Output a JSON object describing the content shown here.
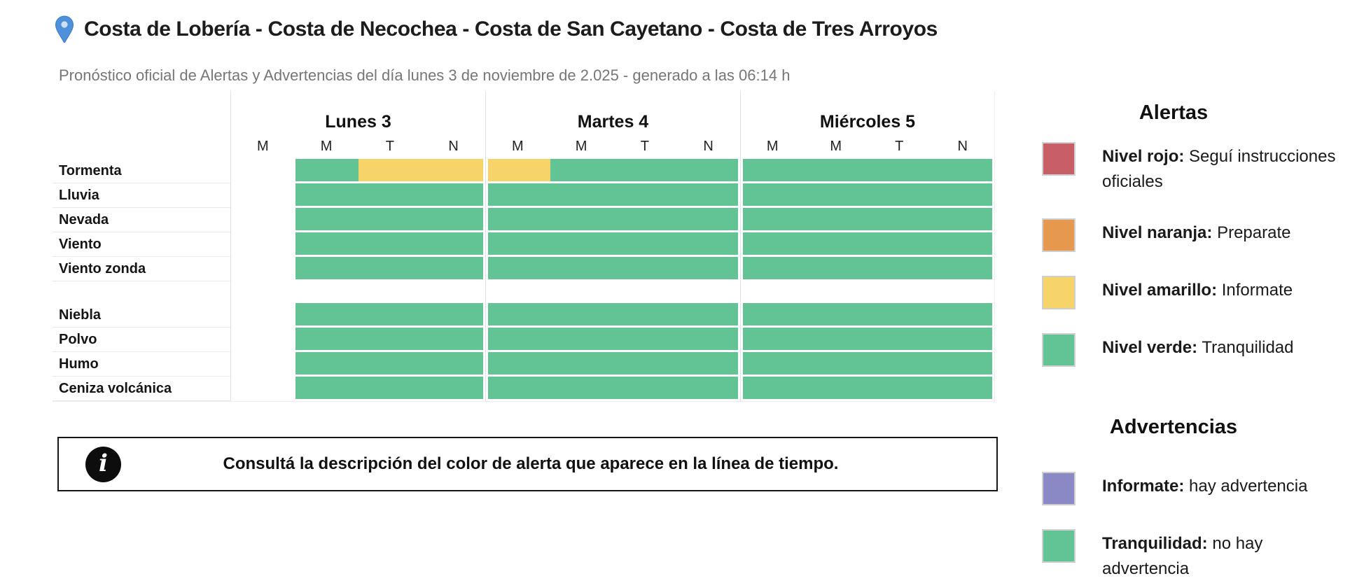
{
  "header": {
    "title": "Costa de Lobería - Costa de Necochea - Costa de San Cayetano - Costa de Tres Arroyos",
    "subtitle": "Pronóstico oficial de Alertas y Advertencias del día lunes 3 de noviembre de 2.025 - generado a las 06:14 h"
  },
  "colors": {
    "green": "#62c394",
    "yellow": "#f6d46a",
    "red": "#c85f66",
    "orange": "#e6994e",
    "purple": "#8b89c5",
    "pin_blue": "#4e90d9",
    "hairline": "#e3e3e3"
  },
  "chart_data": {
    "type": "heatmap",
    "title": "",
    "x_axis": "time periods per day (M madrugada, M mañana, T tarde, N noche)",
    "days": [
      {
        "label": "Lunes 3",
        "slots": [
          "M",
          "M",
          "T",
          "N"
        ]
      },
      {
        "label": "Martes 4",
        "slots": [
          "M",
          "M",
          "T",
          "N"
        ]
      },
      {
        "label": "Miércoles 5",
        "slots": [
          "M",
          "M",
          "T",
          "N"
        ]
      }
    ],
    "cell_legend": {
      "g": "nivel verde / tranquilidad",
      "y": "nivel amarillo / informate",
      "null": "sin dato"
    },
    "groups": [
      {
        "name": "alertas",
        "rows": [
          {
            "label": "Tormenta",
            "cells": [
              [
                null,
                "g",
                "y",
                "y"
              ],
              [
                "y",
                "g",
                "g",
                "g"
              ],
              [
                "g",
                "g",
                "g",
                "g"
              ]
            ]
          },
          {
            "label": "Lluvia",
            "cells": [
              [
                null,
                "g",
                "g",
                "g"
              ],
              [
                "g",
                "g",
                "g",
                "g"
              ],
              [
                "g",
                "g",
                "g",
                "g"
              ]
            ]
          },
          {
            "label": "Nevada",
            "cells": [
              [
                null,
                "g",
                "g",
                "g"
              ],
              [
                "g",
                "g",
                "g",
                "g"
              ],
              [
                "g",
                "g",
                "g",
                "g"
              ]
            ]
          },
          {
            "label": "Viento",
            "cells": [
              [
                null,
                "g",
                "g",
                "g"
              ],
              [
                "g",
                "g",
                "g",
                "g"
              ],
              [
                "g",
                "g",
                "g",
                "g"
              ]
            ]
          },
          {
            "label": "Viento zonda",
            "cells": [
              [
                null,
                "g",
                "g",
                "g"
              ],
              [
                "g",
                "g",
                "g",
                "g"
              ],
              [
                "g",
                "g",
                "g",
                "g"
              ]
            ]
          }
        ]
      },
      {
        "name": "advertencias",
        "rows": [
          {
            "label": "Niebla",
            "cells": [
              [
                null,
                "g",
                "g",
                "g"
              ],
              [
                "g",
                "g",
                "g",
                "g"
              ],
              [
                "g",
                "g",
                "g",
                "g"
              ]
            ]
          },
          {
            "label": "Polvo",
            "cells": [
              [
                null,
                "g",
                "g",
                "g"
              ],
              [
                "g",
                "g",
                "g",
                "g"
              ],
              [
                "g",
                "g",
                "g",
                "g"
              ]
            ]
          },
          {
            "label": "Humo",
            "cells": [
              [
                null,
                "g",
                "g",
                "g"
              ],
              [
                "g",
                "g",
                "g",
                "g"
              ],
              [
                "g",
                "g",
                "g",
                "g"
              ]
            ]
          },
          {
            "label": "Ceniza volcánica",
            "cells": [
              [
                null,
                "g",
                "g",
                "g"
              ],
              [
                "g",
                "g",
                "g",
                "g"
              ],
              [
                "g",
                "g",
                "g",
                "g"
              ]
            ]
          }
        ]
      }
    ]
  },
  "legend": {
    "alertas_title": "Alertas",
    "alertas": [
      {
        "color": "#c85f66",
        "term": "Nivel rojo:",
        "desc": "Seguí instrucciones oficiales"
      },
      {
        "color": "#e6994e",
        "term": "Nivel naranja:",
        "desc": "Preparate"
      },
      {
        "color": "#f6d46a",
        "term": "Nivel amarillo:",
        "desc": "Informate"
      },
      {
        "color": "#62c394",
        "term": "Nivel verde:",
        "desc": "Tranquilidad"
      }
    ],
    "advertencias_title": "Advertencias",
    "advertencias": [
      {
        "color": "#8b89c5",
        "term": "Informate:",
        "desc": "hay advertencia"
      },
      {
        "color": "#62c394",
        "term": "Tranquilidad:",
        "desc": "no hay advertencia"
      }
    ]
  },
  "info_box": {
    "text": "Consultá la descripción del color de alerta que aparece en la línea de tiempo."
  }
}
